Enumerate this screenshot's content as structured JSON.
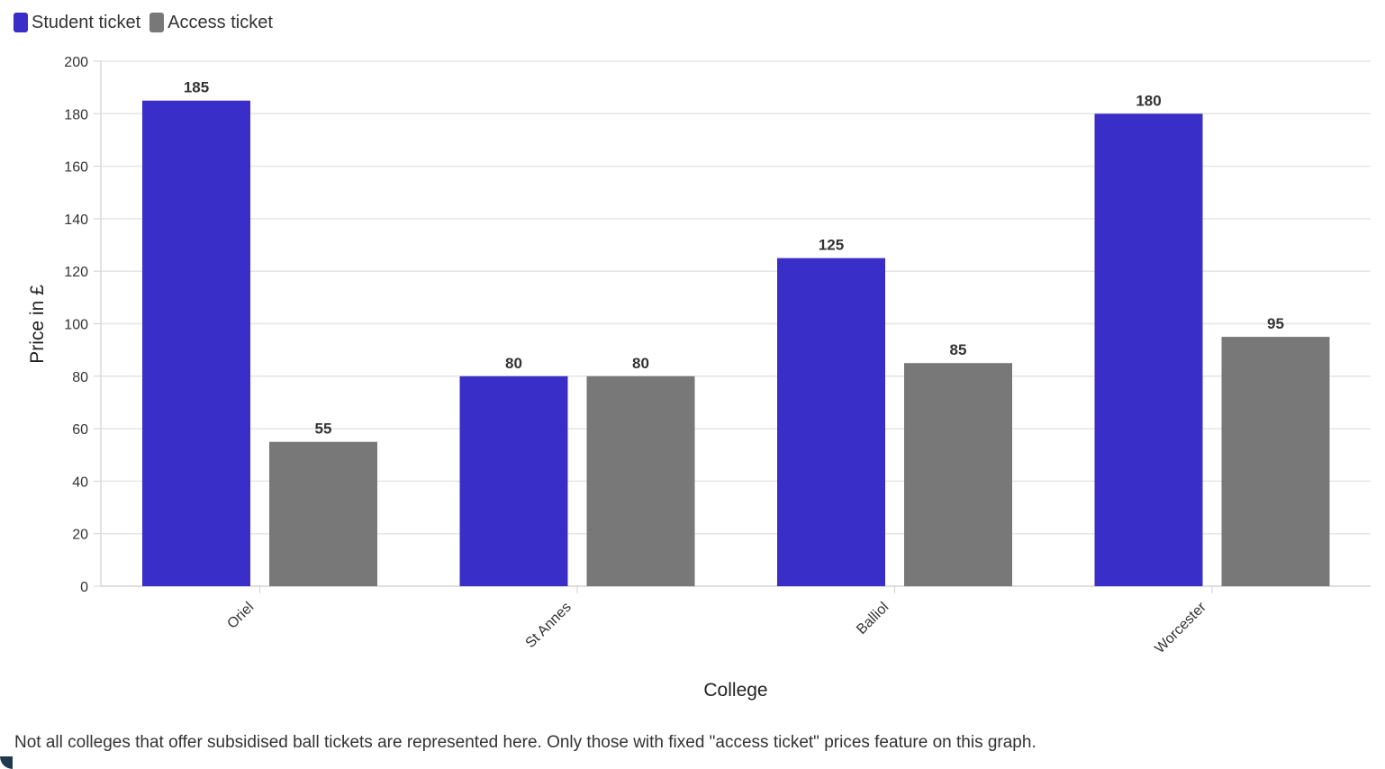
{
  "chart_data": {
    "type": "bar",
    "categories": [
      "Oriel",
      "St Annes",
      "Balliol",
      "Worcester"
    ],
    "series": [
      {
        "name": "Student ticket",
        "values": [
          185,
          80,
          125,
          180
        ],
        "color": "#3a2ec9"
      },
      {
        "name": "Access ticket",
        "values": [
          55,
          80,
          85,
          95
        ],
        "color": "#787878"
      }
    ],
    "title": "",
    "xlabel": "College",
    "ylabel": "Price in £",
    "ylim": [
      0,
      200
    ],
    "yticks": [
      0,
      20,
      40,
      60,
      80,
      100,
      120,
      140,
      160,
      180,
      200
    ],
    "grid": true,
    "legend_position": "top-left",
    "data_labels": true
  },
  "note": "Not all colleges that offer subsidised ball tickets are represented here. Only those with fixed \"access ticket\" prices feature on this graph."
}
